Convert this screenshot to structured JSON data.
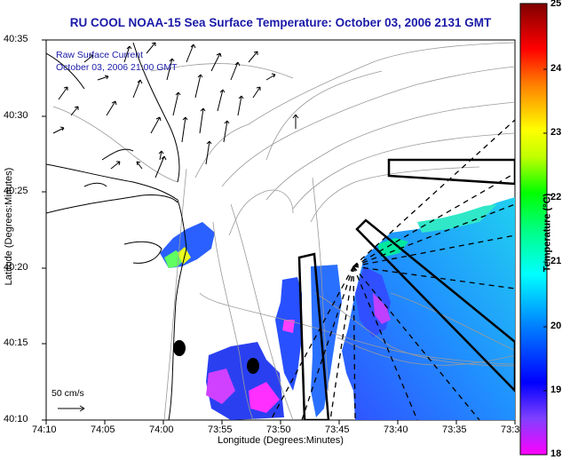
{
  "title": "RU COOL  NOAA-15  Sea Surface Temperature:  October 03, 2006 2131 GMT",
  "overlay": {
    "line1": "Raw Surface Current",
    "line2": "October 03, 2006 21:00 GMT"
  },
  "axes": {
    "xlabel": "Longitude (Degrees:Minutes)",
    "ylabel": "Latitude (Degrees:Minutes)",
    "xticks": [
      "74:10",
      "74:05",
      "74:00",
      "73:55",
      "73:50",
      "73:45",
      "73:40",
      "73:35",
      "73:3"
    ],
    "yticks": [
      "40:35",
      "40:30",
      "40:25",
      "40:20",
      "40:15",
      "40:10"
    ]
  },
  "scale_arrow": {
    "label": "50 cm/s"
  },
  "colorbar": {
    "title": "Temperature (°C)",
    "min": 18,
    "max": 25,
    "ticks": [
      "25",
      "24",
      "23",
      "22",
      "21",
      "20",
      "19",
      "18"
    ],
    "colors": [
      "#ff00ff",
      "#0000ff",
      "#00ffff",
      "#00ff00",
      "#ffff00",
      "#ff8000",
      "#ff0000",
      "#800000"
    ]
  }
}
